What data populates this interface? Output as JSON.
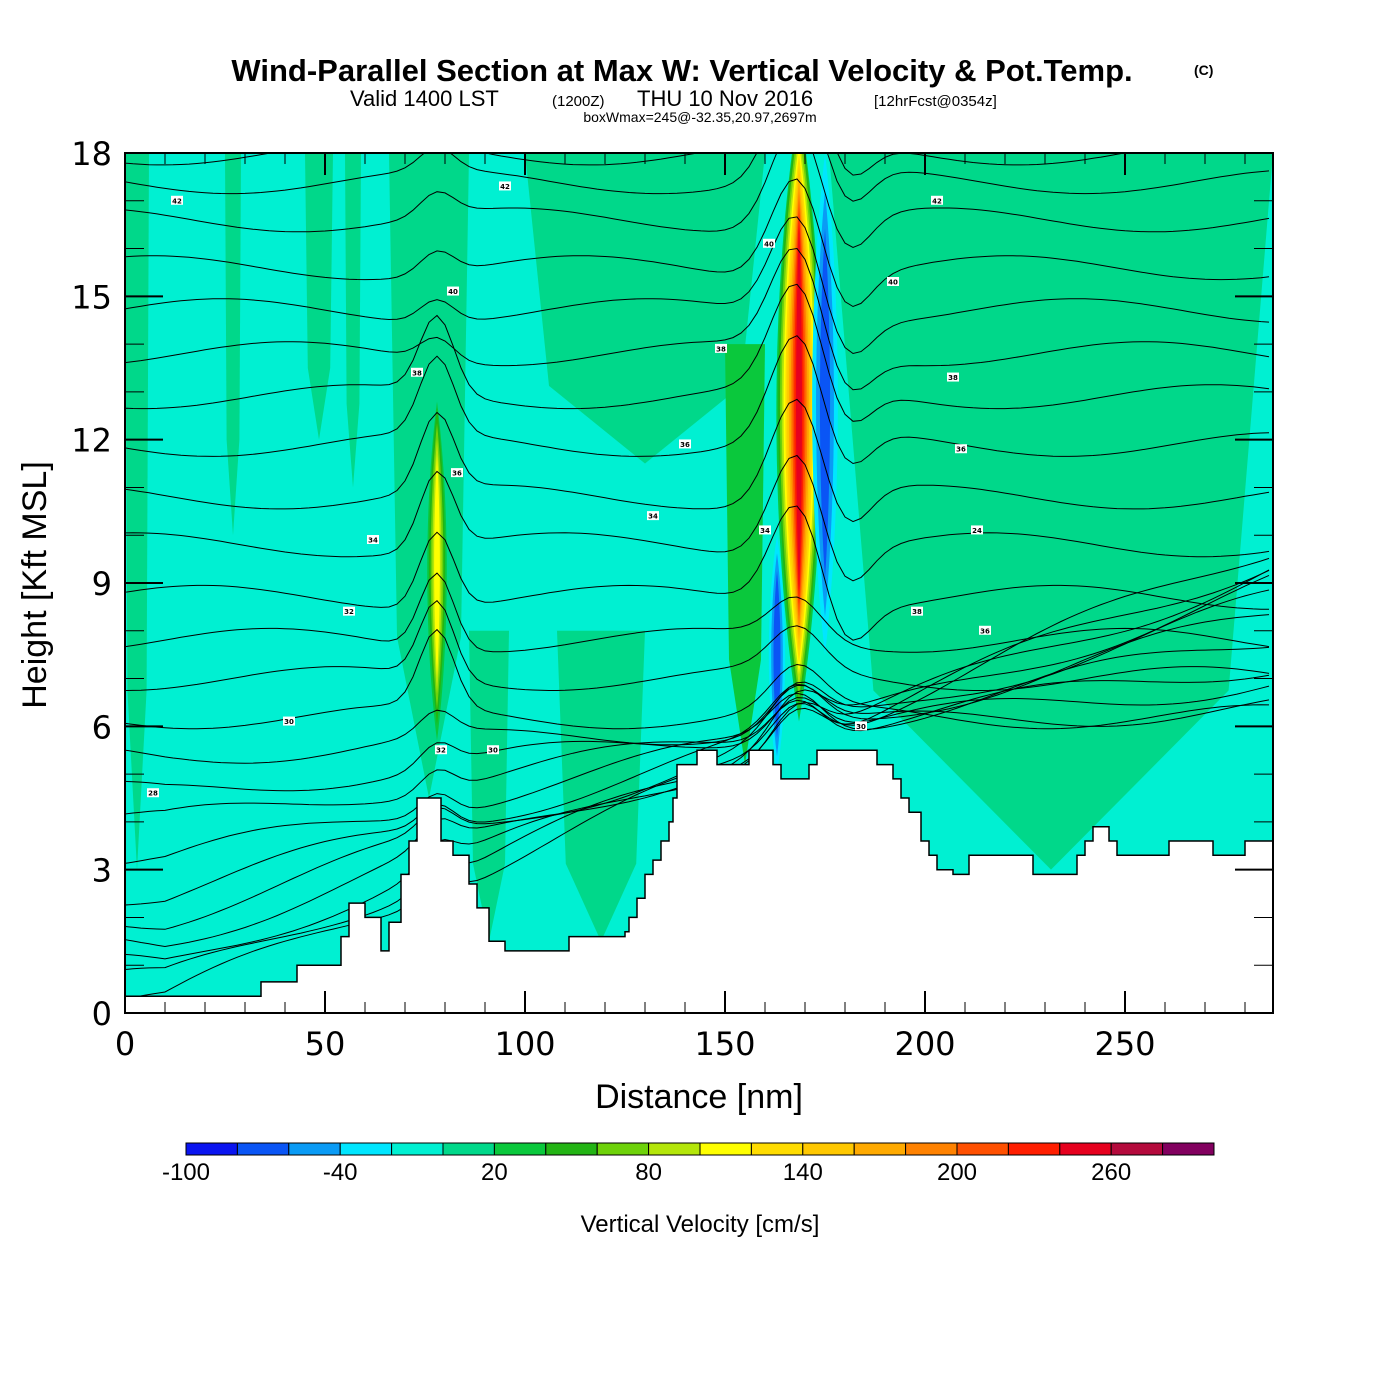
{
  "header": {
    "title": "Wind-Parallel Section at Max W: Vertical Velocity & Pot.Temp.",
    "copyright": "(C)",
    "valid_prefix": "Valid 1400 LST",
    "valid_utc": "(1200Z)",
    "valid_date": "THU 10 Nov 2016",
    "forecast_info": "[12hrFcst@0354z]",
    "box_info": "boxWmax=245@-32.35,20.97,2697m"
  },
  "chart_data": {
    "type": "heatmap",
    "title": "Wind-Parallel Section at Max W: Vertical Velocity & Pot.Temp.",
    "xlabel": "Distance [nm]",
    "ylabel": "Height [Kft MSL]",
    "xlim": [
      0,
      287
    ],
    "ylim": [
      0,
      18
    ],
    "xticks": [
      0,
      50,
      100,
      150,
      200,
      250
    ],
    "yticks": [
      0,
      3,
      6,
      9,
      12,
      15,
      18
    ],
    "x_minor_step": 10,
    "y_minor_step": 1,
    "background_color": "#00d88a",
    "colorbar": {
      "title": "Vertical Velocity [cm/s]",
      "levels": [
        -100,
        -80,
        -60,
        -40,
        -20,
        0,
        20,
        40,
        60,
        80,
        100,
        120,
        140,
        160,
        180,
        200,
        220,
        240,
        260,
        280,
        300
      ],
      "tick_labels": [
        "-100",
        "-40",
        "20",
        "80",
        "140",
        "200",
        "260"
      ],
      "tick_values": [
        -100,
        -40,
        20,
        80,
        140,
        200,
        260
      ],
      "colors": [
        "#0a14f0",
        "#0a55f5",
        "#0a9bf5",
        "#00e6ff",
        "#00f0d2",
        "#00d88a",
        "#0ac83c",
        "#23b414",
        "#6ed20a",
        "#b4e60a",
        "#ffff00",
        "#ffdc00",
        "#ffc800",
        "#ffaa00",
        "#ff8200",
        "#ff5000",
        "#ff1e00",
        "#e6001e",
        "#b40a3c",
        "#82005f"
      ]
    },
    "velocity_features": [
      {
        "name": "updraft-main",
        "x_center": 168.5,
        "y_bottom": 4.9,
        "y_top": 18.0,
        "peak_cms": 245,
        "half_width_nm": 5.5
      },
      {
        "name": "updraft-secondary",
        "x_center": 78,
        "y_bottom": 4.5,
        "y_top": 11.8,
        "peak_cms": 100,
        "half_width_nm": 2.2
      },
      {
        "name": "downdraft-main",
        "x_center": 175,
        "y_bottom": 7.5,
        "y_top": 18.0,
        "peak_cms": -70,
        "half_width_nm": 3
      },
      {
        "name": "downdraft-lower",
        "x_center": 163,
        "y_bottom": 5.0,
        "y_top": 10.0,
        "peak_cms": -60,
        "half_width_nm": 1.8
      },
      {
        "name": "weak-sink-upper-left",
        "x_center": 0,
        "y_bottom": 0,
        "y_top": 0,
        "peak_cms": -10,
        "half_width_nm": 0
      }
    ],
    "bands": [
      {
        "x0": 0,
        "x1": 6,
        "y0": 3,
        "y1": 18,
        "value": 10
      },
      {
        "x0": 25,
        "x1": 29,
        "y0": 10,
        "y1": 18,
        "value": 10
      },
      {
        "x0": 45,
        "x1": 52,
        "y0": 12,
        "y1": 18,
        "value": 10
      },
      {
        "x0": 55,
        "x1": 59,
        "y0": 11,
        "y1": 18,
        "value": 10
      },
      {
        "x0": 66,
        "x1": 86,
        "y0": 4.5,
        "y1": 18,
        "value": 10
      },
      {
        "x0": 86,
        "x1": 96,
        "y0": 1.5,
        "y1": 8,
        "value": 10
      },
      {
        "x0": 108,
        "x1": 130,
        "y0": 1.5,
        "y1": 8,
        "value": 10
      },
      {
        "x0": 100,
        "x1": 160,
        "y0": 11.5,
        "y1": 18,
        "value": 10
      },
      {
        "x0": 150,
        "x1": 160,
        "y0": 5.2,
        "y1": 14,
        "value": 30
      },
      {
        "x0": 184,
        "x1": 190,
        "y0": 11,
        "y1": 18,
        "value": 50
      },
      {
        "x0": 176,
        "x1": 287,
        "y0": 3,
        "y1": 18,
        "value": 10
      }
    ],
    "theta_contours": {
      "unit": "C",
      "labels": [
        {
          "x": 13,
          "y": 17.0,
          "text": "42"
        },
        {
          "x": 95,
          "y": 17.3,
          "text": "42"
        },
        {
          "x": 82,
          "y": 15.1,
          "text": "40"
        },
        {
          "x": 73,
          "y": 13.4,
          "text": "38"
        },
        {
          "x": 83,
          "y": 11.3,
          "text": "36"
        },
        {
          "x": 62,
          "y": 9.9,
          "text": "34"
        },
        {
          "x": 56,
          "y": 8.4,
          "text": "32"
        },
        {
          "x": 41,
          "y": 6.1,
          "text": "30"
        },
        {
          "x": 7,
          "y": 4.6,
          "text": "28"
        },
        {
          "x": 79,
          "y": 5.5,
          "text": "32"
        },
        {
          "x": 92,
          "y": 5.5,
          "text": "30"
        },
        {
          "x": 132,
          "y": 10.4,
          "text": "34"
        },
        {
          "x": 140,
          "y": 11.9,
          "text": "36"
        },
        {
          "x": 149,
          "y": 13.9,
          "text": "38"
        },
        {
          "x": 161,
          "y": 16.1,
          "text": "40"
        },
        {
          "x": 160,
          "y": 10.1,
          "text": "34"
        },
        {
          "x": 184,
          "y": 6.0,
          "text": "30"
        },
        {
          "x": 192,
          "y": 15.3,
          "text": "40"
        },
        {
          "x": 203,
          "y": 17.0,
          "text": "42"
        },
        {
          "x": 207,
          "y": 13.3,
          "text": "38"
        },
        {
          "x": 209,
          "y": 11.8,
          "text": "36"
        },
        {
          "x": 213,
          "y": 10.1,
          "text": "24"
        },
        {
          "x": 198,
          "y": 8.4,
          "text": "38"
        },
        {
          "x": 215,
          "y": 8.0,
          "text": "36"
        }
      ],
      "levels_kft_left_edge": [
        0.3,
        0.7,
        1.0,
        1.5,
        2.0,
        2.5,
        3.2,
        4.0,
        4.6,
        5.4,
        6.2,
        7.0,
        7.8,
        8.7,
        9.8,
        10.8,
        11.9,
        12.9,
        13.8,
        14.7,
        15.6,
        16.6,
        17.4,
        18.0
      ]
    },
    "terrain_kft": [
      [
        0,
        0.35
      ],
      [
        34,
        0.35
      ],
      [
        34,
        0.65
      ],
      [
        43,
        0.65
      ],
      [
        43,
        1.0
      ],
      [
        54,
        1.0
      ],
      [
        54,
        1.6
      ],
      [
        56,
        1.6
      ],
      [
        56,
        2.3
      ],
      [
        60,
        2.3
      ],
      [
        60,
        2.0
      ],
      [
        64,
        2.0
      ],
      [
        64,
        1.3
      ],
      [
        66,
        1.3
      ],
      [
        66,
        1.9
      ],
      [
        69,
        1.9
      ],
      [
        69,
        2.9
      ],
      [
        71,
        2.9
      ],
      [
        71,
        3.6
      ],
      [
        73,
        3.6
      ],
      [
        73,
        4.5
      ],
      [
        79,
        4.5
      ],
      [
        79,
        3.6
      ],
      [
        82,
        3.6
      ],
      [
        82,
        3.3
      ],
      [
        86,
        3.3
      ],
      [
        86,
        2.7
      ],
      [
        88,
        2.7
      ],
      [
        88,
        2.2
      ],
      [
        91,
        2.2
      ],
      [
        91,
        1.5
      ],
      [
        95,
        1.5
      ],
      [
        95,
        1.3
      ],
      [
        111,
        1.3
      ],
      [
        111,
        1.6
      ],
      [
        125,
        1.6
      ],
      [
        125,
        1.7
      ],
      [
        126,
        1.7
      ],
      [
        126,
        2.0
      ],
      [
        128,
        2.0
      ],
      [
        128,
        2.4
      ],
      [
        130,
        2.4
      ],
      [
        130,
        2.9
      ],
      [
        132,
        2.9
      ],
      [
        132,
        3.2
      ],
      [
        134,
        3.2
      ],
      [
        134,
        3.6
      ],
      [
        136,
        3.6
      ],
      [
        136,
        4.0
      ],
      [
        137,
        4.0
      ],
      [
        137,
        4.5
      ],
      [
        138,
        4.5
      ],
      [
        138,
        5.2
      ],
      [
        143,
        5.2
      ],
      [
        143,
        5.5
      ],
      [
        148,
        5.5
      ],
      [
        148,
        5.2
      ],
      [
        156,
        5.2
      ],
      [
        156,
        5.5
      ],
      [
        162,
        5.5
      ],
      [
        162,
        5.2
      ],
      [
        164,
        5.2
      ],
      [
        164,
        4.9
      ],
      [
        171,
        4.9
      ],
      [
        171,
        5.2
      ],
      [
        173,
        5.2
      ],
      [
        173,
        5.5
      ],
      [
        188,
        5.5
      ],
      [
        188,
        5.2
      ],
      [
        192,
        5.2
      ],
      [
        192,
        4.9
      ],
      [
        194,
        4.9
      ],
      [
        194,
        4.5
      ],
      [
        196,
        4.5
      ],
      [
        196,
        4.2
      ],
      [
        199,
        4.2
      ],
      [
        199,
        3.6
      ],
      [
        201,
        3.6
      ],
      [
        201,
        3.3
      ],
      [
        203,
        3.3
      ],
      [
        203,
        3.0
      ],
      [
        207,
        3.0
      ],
      [
        207,
        2.9
      ],
      [
        211,
        2.9
      ],
      [
        211,
        3.3
      ],
      [
        227,
        3.3
      ],
      [
        227,
        2.9
      ],
      [
        238,
        2.9
      ],
      [
        238,
        3.3
      ],
      [
        240,
        3.3
      ],
      [
        240,
        3.6
      ],
      [
        242,
        3.6
      ],
      [
        242,
        3.9
      ],
      [
        246,
        3.9
      ],
      [
        246,
        3.6
      ],
      [
        248,
        3.6
      ],
      [
        248,
        3.3
      ],
      [
        261,
        3.3
      ],
      [
        261,
        3.6
      ],
      [
        272,
        3.6
      ],
      [
        272,
        3.3
      ],
      [
        280,
        3.3
      ],
      [
        280,
        3.6
      ],
      [
        287,
        3.6
      ]
    ]
  }
}
